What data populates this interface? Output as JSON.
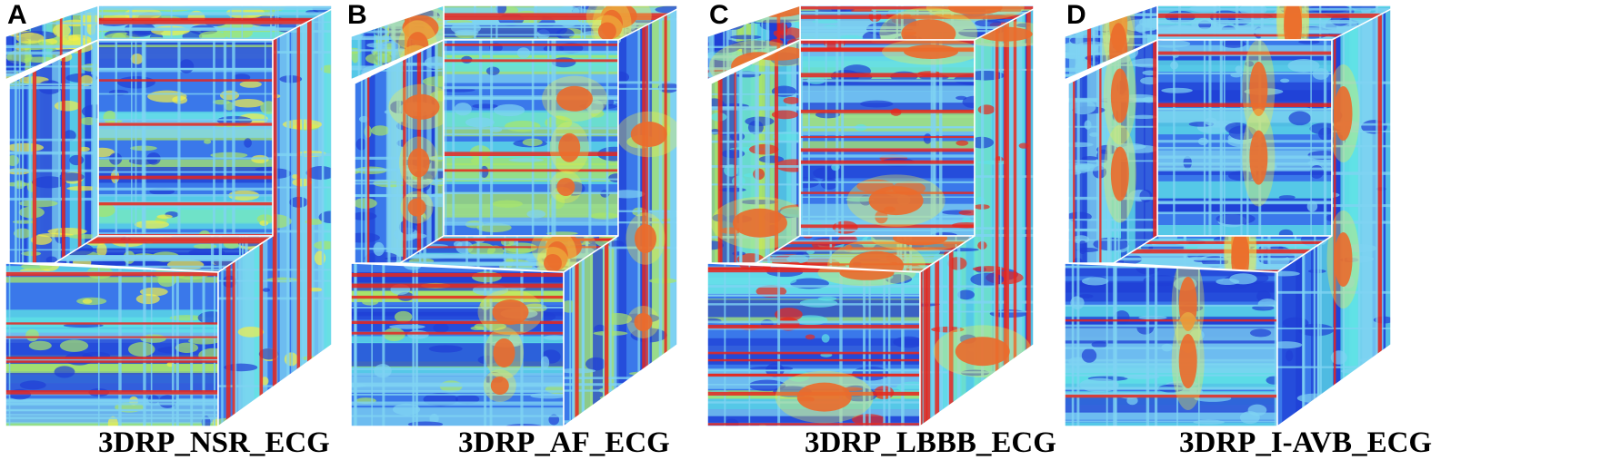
{
  "panels": [
    {
      "letter": "A",
      "caption": "3DRP_NSR_ECG",
      "palette": "nsr"
    },
    {
      "letter": "B",
      "caption": "3DRP_AF_ECG",
      "palette": "af"
    },
    {
      "letter": "C",
      "caption": "3DRP_LBBB_ECG",
      "palette": "lbbb"
    },
    {
      "letter": "D",
      "caption": "3DRP_I-AVB_ECG",
      "palette": "iavb"
    }
  ],
  "colors": {
    "deep_blue": "#1f3fd6",
    "blue": "#3a78ea",
    "light_blue": "#7fd3f2",
    "cyan": "#5fe3e6",
    "green": "#a8e66a",
    "yellow": "#f2ef4a",
    "red": "#e8261c",
    "edge": "#ffffff"
  }
}
